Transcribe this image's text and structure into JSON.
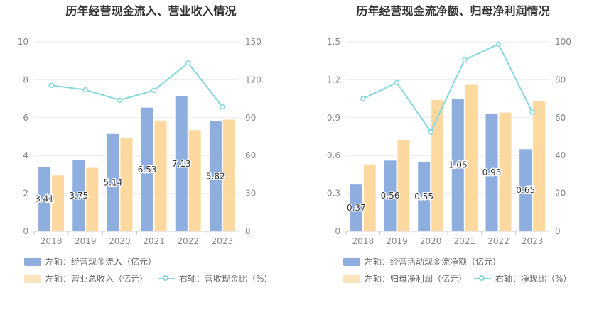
{
  "chart_data": [
    {
      "type": "bar",
      "title": "历年经营现金流入、营业收入情况",
      "categories": [
        "2018",
        "2019",
        "2020",
        "2021",
        "2022",
        "2023"
      ],
      "y_left": {
        "range": [
          0,
          10
        ],
        "ticks": [
          "0",
          "2",
          "4",
          "6",
          "8",
          "10"
        ]
      },
      "y_right": {
        "range": [
          0,
          150
        ],
        "ticks": [
          "0",
          "30",
          "60",
          "90",
          "120",
          "150"
        ]
      },
      "grid": true,
      "legend_position": "bottom-left",
      "series": [
        {
          "name": "左轴：经营现金流入（亿元）",
          "type": "bar",
          "axis": "left",
          "color": "#8eaee0",
          "values": [
            3.41,
            3.75,
            5.14,
            6.53,
            7.13,
            5.82
          ],
          "labels": [
            "3.41",
            "3.75",
            "5.14",
            "6.53",
            "7.13",
            "5.82"
          ]
        },
        {
          "name": "左轴：营业总收入（亿元）",
          "type": "bar",
          "axis": "left",
          "color": "#fdd9a0",
          "values": [
            2.95,
            3.35,
            4.95,
            5.85,
            5.35,
            5.9
          ]
        },
        {
          "name": "右轴：营收现金比（%）",
          "type": "line",
          "axis": "right",
          "color": "#85d8df",
          "values": [
            115.6,
            112.0,
            103.8,
            111.6,
            133.3,
            98.6
          ]
        }
      ]
    },
    {
      "type": "bar",
      "title": "历年经营现金流净额、归母净利润情况",
      "categories": [
        "2018",
        "2019",
        "2020",
        "2021",
        "2022",
        "2023"
      ],
      "y_left": {
        "range": [
          0,
          1.5
        ],
        "ticks": [
          "0",
          "0.3",
          "0.6",
          "0.9",
          "1.2",
          "1.5"
        ]
      },
      "y_right": {
        "range": [
          0,
          100
        ],
        "ticks": [
          "0",
          "20",
          "40",
          "60",
          "80",
          "100"
        ]
      },
      "grid": true,
      "legend_position": "bottom-left",
      "series": [
        {
          "name": "左轴：经营活动现金流净额（亿元）",
          "type": "bar",
          "axis": "left",
          "color": "#8eaee0",
          "values": [
            0.37,
            0.56,
            0.55,
            1.05,
            0.93,
            0.65
          ],
          "labels": [
            "0.37",
            "0.56",
            "0.55",
            "1.05",
            "0.93",
            "0.65"
          ]
        },
        {
          "name": "左轴：归母净利润（亿元）",
          "type": "bar",
          "axis": "left",
          "color": "#fdd9a0",
          "values": [
            0.53,
            0.72,
            1.04,
            1.16,
            0.94,
            1.03
          ]
        },
        {
          "name": "右轴：净现比（%）",
          "type": "line",
          "axis": "right",
          "color": "#85d8df",
          "values": [
            70,
            78.5,
            52.5,
            90.5,
            98.8,
            62.8
          ]
        }
      ]
    }
  ]
}
